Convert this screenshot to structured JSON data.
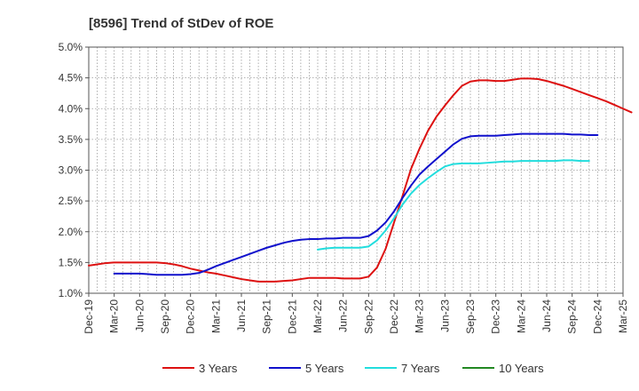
{
  "chart_data": {
    "type": "line",
    "title": "[8596]  Trend of StDev of ROE",
    "xlabel": "",
    "ylabel": "",
    "x_ticks": [
      "Dec-19",
      "Mar-20",
      "Jun-20",
      "Sep-20",
      "Dec-20",
      "Mar-21",
      "Jun-21",
      "Sep-21",
      "Dec-21",
      "Mar-22",
      "Jun-22",
      "Sep-22",
      "Dec-22",
      "Mar-23",
      "Jun-23",
      "Sep-23",
      "Dec-23",
      "Mar-24",
      "Jun-24",
      "Sep-24",
      "Dec-24",
      "Mar-25"
    ],
    "y_ticks": [
      "1.0%",
      "1.5%",
      "2.0%",
      "2.5%",
      "3.0%",
      "3.5%",
      "4.0%",
      "4.5%",
      "5.0%"
    ],
    "ylim": [
      1.0,
      5.0
    ],
    "grid": true,
    "legend_position": "bottom",
    "series": [
      {
        "name": "3 Years",
        "color": "#dd1111",
        "start_index": 0,
        "values": [
          1.45,
          1.47,
          1.49,
          1.5,
          1.5,
          1.5,
          1.5,
          1.5,
          1.5,
          1.49,
          1.47,
          1.44,
          1.4,
          1.37,
          1.34,
          1.32,
          1.29,
          1.26,
          1.23,
          1.21,
          1.19,
          1.19,
          1.19,
          1.2,
          1.21,
          1.23,
          1.25,
          1.25,
          1.25,
          1.25,
          1.24,
          1.24,
          1.24,
          1.27,
          1.42,
          1.72,
          2.15,
          2.58,
          3.02,
          3.35,
          3.64,
          3.87,
          4.05,
          4.22,
          4.37,
          4.44,
          4.46,
          4.46,
          4.45,
          4.45,
          4.47,
          4.49,
          4.49,
          4.48,
          4.45,
          4.41,
          4.37,
          4.32,
          4.27,
          4.22,
          4.17,
          4.12,
          4.06,
          4.0,
          3.94
        ]
      },
      {
        "name": "5 Years",
        "color": "#1111cc",
        "start_index": 3,
        "values": [
          1.32,
          1.32,
          1.32,
          1.32,
          1.31,
          1.3,
          1.3,
          1.3,
          1.3,
          1.31,
          1.33,
          1.38,
          1.44,
          1.49,
          1.54,
          1.59,
          1.64,
          1.69,
          1.74,
          1.78,
          1.82,
          1.85,
          1.87,
          1.88,
          1.88,
          1.89,
          1.89,
          1.9,
          1.9,
          1.9,
          1.93,
          2.02,
          2.15,
          2.33,
          2.55,
          2.75,
          2.93,
          3.06,
          3.18,
          3.3,
          3.42,
          3.51,
          3.55,
          3.56,
          3.56,
          3.56,
          3.57,
          3.58,
          3.59,
          3.59,
          3.59,
          3.59,
          3.59,
          3.59,
          3.58,
          3.58,
          3.57,
          3.57
        ]
      },
      {
        "name": "7 Years",
        "color": "#22dddd",
        "start_index": 27,
        "values": [
          1.71,
          1.73,
          1.74,
          1.74,
          1.74,
          1.74,
          1.76,
          1.86,
          2.02,
          2.22,
          2.44,
          2.62,
          2.76,
          2.87,
          2.97,
          3.06,
          3.1,
          3.11,
          3.11,
          3.11,
          3.12,
          3.13,
          3.14,
          3.14,
          3.15,
          3.15,
          3.15,
          3.15,
          3.15,
          3.16,
          3.16,
          3.15,
          3.15
        ]
      },
      {
        "name": "10 Years",
        "color": "#228822",
        "start_index": 0,
        "values": []
      }
    ]
  }
}
